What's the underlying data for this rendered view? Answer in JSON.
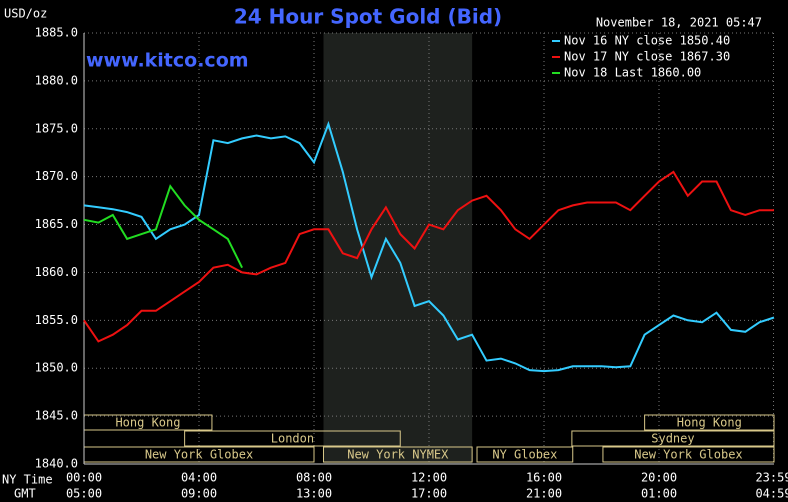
{
  "chart_data": {
    "type": "line",
    "title": "24 Hour Spot Gold (Bid)",
    "y_label": "USD/oz",
    "watermark": "www.kitco.com",
    "timestamp": "November 18, 2021 05:47",
    "x_label": "NY Time",
    "x2_label": "GMT",
    "x": [
      0,
      0.5,
      1,
      1.5,
      2,
      2.5,
      3,
      3.5,
      4,
      4.5,
      5,
      5.5,
      6,
      6.5,
      7,
      7.5,
      8,
      8.5,
      9,
      9.5,
      10,
      10.5,
      11,
      11.5,
      12,
      12.5,
      13,
      13.5,
      14,
      14.5,
      15,
      15.5,
      16,
      16.5,
      17,
      17.5,
      18,
      18.5,
      19,
      19.5,
      20,
      20.5,
      21,
      21.5,
      22,
      22.5,
      23,
      23.5,
      24
    ],
    "series": [
      {
        "name": "Nov 16 NY close 1850.40",
        "color": "#33ccff",
        "values": [
          1867.0,
          1866.8,
          1866.6,
          1866.3,
          1865.8,
          1863.5,
          1864.5,
          1865.0,
          1866.0,
          1873.8,
          1873.5,
          1874.0,
          1874.3,
          1874.0,
          1874.2,
          1873.5,
          1871.5,
          1875.5,
          1870.5,
          1864.5,
          1859.5,
          1863.5,
          1861.0,
          1856.5,
          1857.0,
          1855.5,
          1853.0,
          1853.5,
          1850.8,
          1851.0,
          1850.5,
          1849.8,
          1849.7,
          1849.8,
          1850.2,
          1850.2,
          1850.2,
          1850.1,
          1850.2,
          1853.5,
          1854.5,
          1855.5,
          1855.0,
          1854.8,
          1855.8,
          1854.0,
          1853.8,
          1854.8,
          1855.3
        ]
      },
      {
        "name": "Nov 17 NY close 1867.30",
        "color": "#ee1111",
        "values": [
          1855.0,
          1852.8,
          1853.5,
          1854.5,
          1856.0,
          1856.0,
          1857.0,
          1858.0,
          1859.0,
          1860.5,
          1860.8,
          1860.0,
          1859.8,
          1860.5,
          1861.0,
          1864.0,
          1864.5,
          1864.5,
          1862.0,
          1861.5,
          1864.5,
          1866.8,
          1864.0,
          1862.5,
          1865.0,
          1864.5,
          1866.5,
          1867.5,
          1868.0,
          1866.5,
          1864.5,
          1863.5,
          1865.0,
          1866.5,
          1867.0,
          1867.3,
          1867.3,
          1867.3,
          1866.5,
          1868.0,
          1869.5,
          1870.5,
          1868.0,
          1869.5,
          1869.5,
          1866.5,
          1866.0,
          1866.5,
          1866.5
        ]
      },
      {
        "name": "Nov 18 Last 1860.00",
        "color": "#22dd22",
        "values": [
          1865.5,
          1865.2,
          1866.0,
          1863.5,
          1864.0,
          1864.5,
          1869.0,
          1867.0,
          1865.5,
          1864.5,
          1863.5,
          1860.5,
          null,
          null,
          null,
          null,
          null,
          null,
          null,
          null,
          null,
          null,
          null,
          null,
          null,
          null,
          null,
          null,
          null,
          null,
          null,
          null,
          null,
          null,
          null,
          null,
          null,
          null,
          null,
          null,
          null,
          null,
          null,
          null,
          null,
          null,
          null,
          null,
          null
        ]
      }
    ],
    "xlim": [
      0,
      24
    ],
    "xticks": [
      {
        "value": 0,
        "label": "00:00"
      },
      {
        "value": 4,
        "label": "04:00"
      },
      {
        "value": 8,
        "label": "08:00"
      },
      {
        "value": 12,
        "label": "12:00"
      },
      {
        "value": 16,
        "label": "16:00"
      },
      {
        "value": 20,
        "label": "20:00"
      },
      {
        "value": 23.983,
        "label": "23:59"
      }
    ],
    "x2ticks": [
      "05:00",
      "09:00",
      "13:00",
      "17:00",
      "21:00",
      "01:00",
      "04:59"
    ],
    "ylim": [
      1840,
      1885
    ],
    "yticks": [
      {
        "value": 1840,
        "label": "1840.0"
      },
      {
        "value": 1845,
        "label": "1845.0"
      },
      {
        "value": 1850,
        "label": "1850.0"
      },
      {
        "value": 1855,
        "label": "1855.0"
      },
      {
        "value": 1860,
        "label": "1860.0"
      },
      {
        "value": 1865,
        "label": "1865.0"
      },
      {
        "value": 1870,
        "label": "1870.0"
      },
      {
        "value": 1875,
        "label": "1875.0"
      },
      {
        "value": 1880,
        "label": "1880.0"
      },
      {
        "value": 1885,
        "label": "1885.0"
      }
    ],
    "grid": true,
    "highlight_x": [
      8.33,
      13.5
    ],
    "sessions": [
      {
        "label": "Hong Kong",
        "start": 0,
        "end": 4.45
      },
      {
        "label": "Hong Kong",
        "start": 19.5,
        "end": 24
      },
      {
        "label": "London",
        "start": 3.5,
        "end": 11
      },
      {
        "label": "Sydney",
        "start": 16.97,
        "end": 24
      },
      {
        "label": "New York Globex",
        "start": 0,
        "end": 8
      },
      {
        "label": "New York NYMEX",
        "start": 8.33,
        "end": 13.5
      },
      {
        "label": "NY Globex",
        "start": 13.67,
        "end": 17
      },
      {
        "label": "New York Globex",
        "start": 18.05,
        "end": 24
      }
    ]
  }
}
